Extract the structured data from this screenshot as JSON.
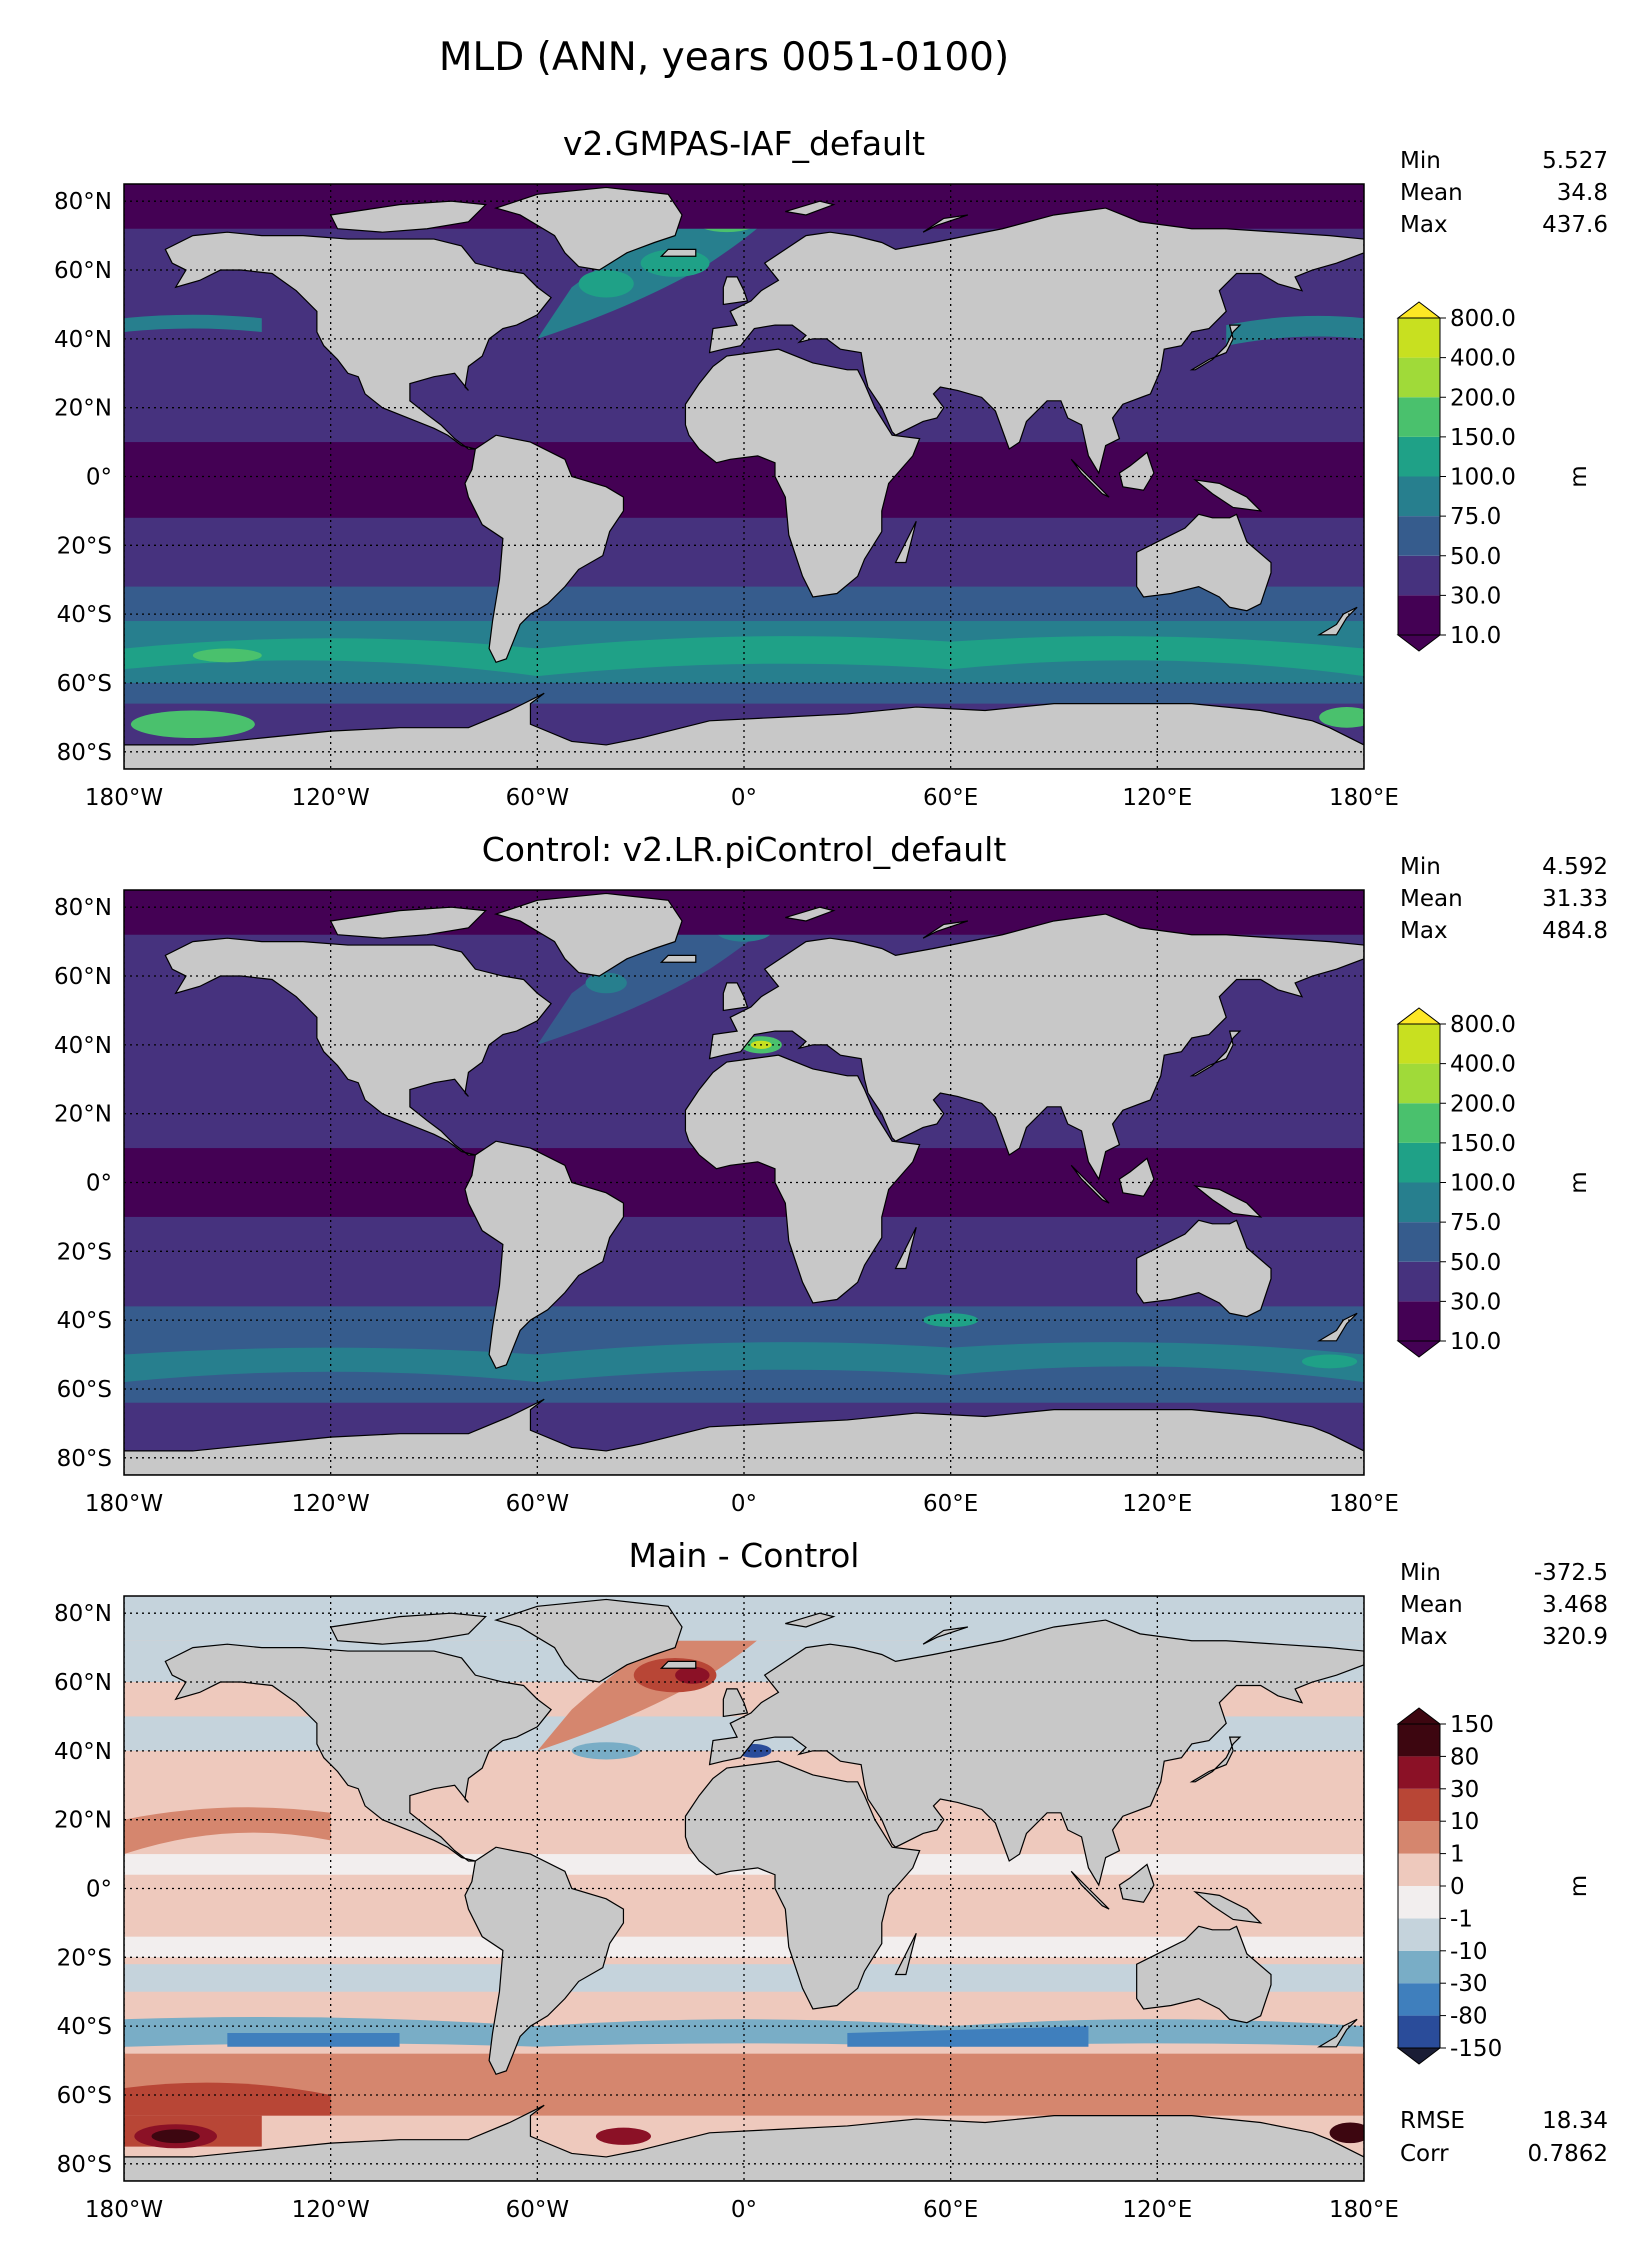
{
  "figure_title": "MLD (ANN, years 0051-0100)",
  "colors": {
    "land": "#c8c8c8",
    "viridis": [
      "#440154",
      "#46327e",
      "#365c8d",
      "#277f8e",
      "#1fa187",
      "#4ac16d",
      "#a0da39",
      "#c8e020",
      "#fde725"
    ],
    "diff": [
      "#1a1d35",
      "#2a4c9a",
      "#3f7fbd",
      "#79adc6",
      "#c5d3dc",
      "#f2eeee",
      "#eec9bd",
      "#d5866e",
      "#b84636",
      "#8b1126",
      "#3d0610"
    ]
  },
  "chart_data": [
    {
      "type": "heatmap",
      "title": "v2.GMPAS-IAF_default",
      "xlim": [
        -180,
        180
      ],
      "ylim": [
        -85,
        85
      ],
      "xticks": [
        "180°W",
        "120°W",
        "60°W",
        "0°",
        "60°E",
        "120°E",
        "180°E"
      ],
      "yticks": [
        "80°N",
        "60°N",
        "40°N",
        "20°N",
        "0°",
        "20°S",
        "40°S",
        "60°S",
        "80°S"
      ],
      "grid": true,
      "colorbar": {
        "label": "m",
        "levels": [
          "10.0",
          "30.0",
          "50.0",
          "75.0",
          "100.0",
          "150.0",
          "200.0",
          "400.0",
          "800.0"
        ]
      },
      "stats": [
        {
          "label": "Min",
          "value": "5.527"
        },
        {
          "label": "Mean",
          "value": "34.8"
        },
        {
          "label": "Max",
          "value": "437.6"
        }
      ]
    },
    {
      "type": "heatmap",
      "title": "Control: v2.LR.piControl_default",
      "xlim": [
        -180,
        180
      ],
      "ylim": [
        -85,
        85
      ],
      "xticks": [
        "180°W",
        "120°W",
        "60°W",
        "0°",
        "60°E",
        "120°E",
        "180°E"
      ],
      "yticks": [
        "80°N",
        "60°N",
        "40°N",
        "20°N",
        "0°",
        "20°S",
        "40°S",
        "60°S",
        "80°S"
      ],
      "grid": true,
      "colorbar": {
        "label": "m",
        "levels": [
          "10.0",
          "30.0",
          "50.0",
          "75.0",
          "100.0",
          "150.0",
          "200.0",
          "400.0",
          "800.0"
        ]
      },
      "stats": [
        {
          "label": "Min",
          "value": "4.592"
        },
        {
          "label": "Mean",
          "value": "31.33"
        },
        {
          "label": "Max",
          "value": "484.8"
        }
      ]
    },
    {
      "type": "heatmap",
      "title": "Main - Control",
      "xlim": [
        -180,
        180
      ],
      "ylim": [
        -85,
        85
      ],
      "xticks": [
        "180°W",
        "120°W",
        "60°W",
        "0°",
        "60°E",
        "120°E",
        "180°E"
      ],
      "yticks": [
        "80°N",
        "60°N",
        "40°N",
        "20°N",
        "0°",
        "20°S",
        "40°S",
        "60°S",
        "80°S"
      ],
      "grid": true,
      "colorbar": {
        "label": "m",
        "levels": [
          "-150",
          "-80",
          "-30",
          "-10",
          "-1",
          "0",
          "1",
          "10",
          "30",
          "80",
          "150"
        ]
      },
      "stats": [
        {
          "label": "Min",
          "value": "-372.5"
        },
        {
          "label": "Mean",
          "value": "3.468"
        },
        {
          "label": "Max",
          "value": "320.9"
        }
      ],
      "metrics": [
        {
          "label": "RMSE",
          "value": "18.34"
        },
        {
          "label": "Corr",
          "value": "0.7862"
        }
      ]
    }
  ]
}
